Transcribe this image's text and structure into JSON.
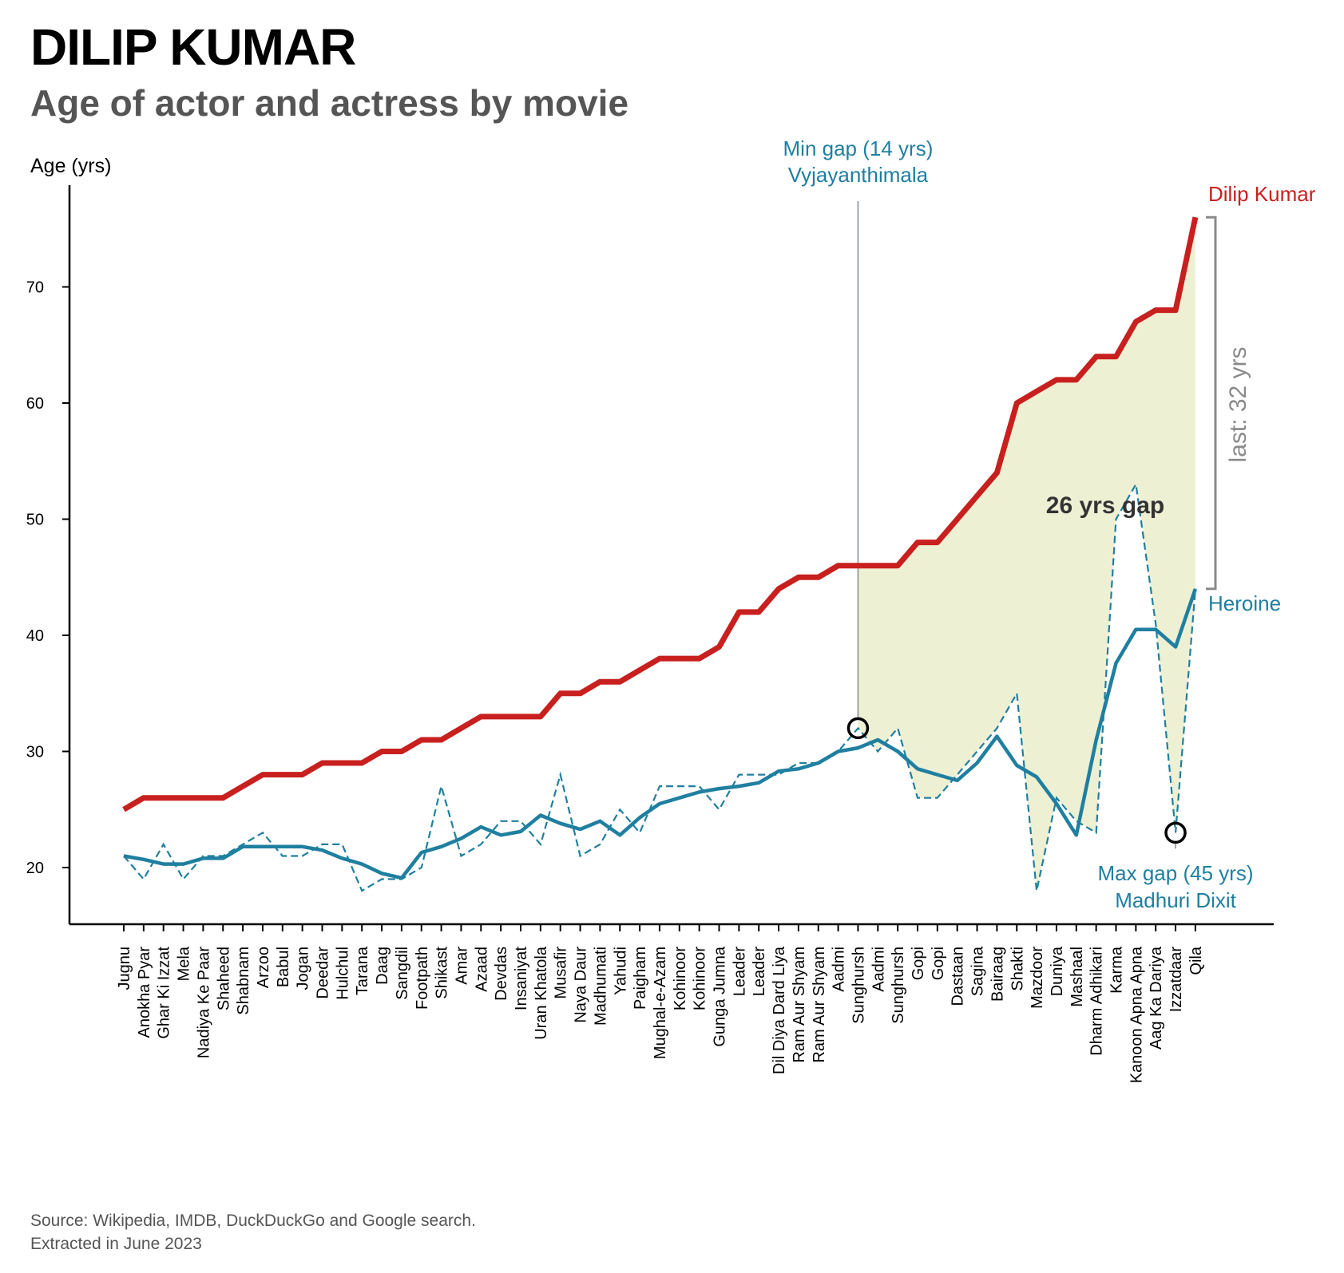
{
  "title": "DILIP KUMAR",
  "subtitle": "Age of actor and actress by movie",
  "footer": {
    "line1": "Source: Wikipedia, IMDB, DuckDuckGo and Google search.",
    "line2": "Extracted in June 2023"
  },
  "colors": {
    "actor": "#c8201e",
    "heroine": "#1f7fa0",
    "gap_fill": "#eef0d4",
    "annotation_gray": "#888888",
    "bracket_gray": "#8a8a8a"
  },
  "chart_data": {
    "type": "line",
    "ylabel": "Age (yrs)",
    "ylim": [
      15,
      79
    ],
    "yticks": [
      20,
      30,
      40,
      50,
      60,
      70
    ],
    "categories": [
      "Jugnu",
      "Anokha Pyar",
      "Ghar Ki Izzat",
      "Mela",
      "Nadiya Ke Paar",
      "Shaheed",
      "Shabnam",
      "Arzoo",
      "Babul",
      "Jogan",
      "Deedar",
      "Hulchul",
      "Tarana",
      "Daag",
      "Sangdil",
      "Footpath",
      "Shikast",
      "Amar",
      "Azaad",
      "Devdas",
      "Insaniyat",
      "Uran Khatola",
      "Musafir",
      "Naya Daur",
      "Madhumati",
      "Yahudi",
      "Paigham",
      "Mughal-e-Azam",
      "Kohinoor",
      "Kohinoor",
      "Gunga Jumna",
      "Leader",
      "Leader",
      "Dil Diya Dard Liya",
      "Ram Aur Shyam",
      "Ram Aur Shyam",
      "Aadmi",
      "Sunghursh",
      "Aadmi",
      "Sunghursh",
      "Gopi",
      "Gopi",
      "Dastaan",
      "Sagina",
      "Bairaag",
      "Shakti",
      "Mazdoor",
      "Duniya",
      "Mashaal",
      "Dharm Adhikari",
      "Karma",
      "Kanoon Apna Apna",
      "Aag Ka Dariya",
      "Izzatdaar",
      "Qila"
    ],
    "series": [
      {
        "name": "Dilip Kumar",
        "style": "solid-thick",
        "values": [
          25,
          26,
          26,
          26,
          26,
          26,
          27,
          28,
          28,
          28,
          29,
          29,
          29,
          30,
          30,
          31,
          31,
          32,
          33,
          33,
          33,
          33,
          35,
          35,
          36,
          36,
          37,
          38,
          38,
          38,
          39,
          42,
          42,
          44,
          45,
          45,
          46,
          46,
          46,
          46,
          48,
          48,
          50,
          52,
          54,
          60,
          61,
          62,
          62,
          64,
          64,
          67,
          68,
          68,
          76
        ]
      },
      {
        "name": "Heroine",
        "style": "dashed",
        "values": [
          21,
          19,
          22,
          19,
          21,
          21,
          22,
          23,
          21,
          21,
          22,
          22,
          18,
          19,
          19,
          20,
          27,
          21,
          22,
          24,
          24,
          22,
          28,
          21,
          22,
          25,
          23,
          27,
          27,
          27,
          25,
          28,
          28,
          28,
          29,
          29,
          30,
          32,
          30,
          32,
          26,
          26,
          28,
          30,
          32,
          35,
          18,
          26,
          24,
          23,
          50,
          53,
          41,
          23,
          44
        ]
      },
      {
        "name": "Heroine",
        "style": "solid-rolling-average",
        "values": [
          21,
          20.7,
          20.3,
          20.3,
          20.8,
          20.8,
          21.8,
          21.8,
          21.8,
          21.8,
          21.5,
          20.8,
          20.3,
          19.5,
          19.1,
          21.3,
          21.8,
          22.5,
          23.5,
          22.8,
          23.1,
          24.5,
          23.8,
          23.3,
          24,
          22.8,
          24.3,
          25.5,
          26,
          26.5,
          26.8,
          27,
          27.3,
          28.3,
          28.5,
          29,
          30,
          30.3,
          31,
          30,
          28.5,
          28,
          27.5,
          29,
          31.3,
          28.8,
          27.8,
          25.5,
          22.8,
          31,
          37.6,
          40.5,
          40.5,
          39,
          44
        ]
      }
    ],
    "gap_fill_from_index": 37,
    "annotations": {
      "min_gap_line1": "Min gap (14 yrs)",
      "min_gap_line2": "Vyjayanthimala",
      "min_gap_index": 37,
      "min_gap_value": 32,
      "max_gap_line1": "Max gap (45 yrs)",
      "max_gap_line2": "Madhuri Dixit",
      "max_gap_index": 53,
      "max_gap_value": 23,
      "gap_label": "26 yrs gap",
      "last_gap_label": "last: 32 yrs",
      "actor_label": "Dilip Kumar",
      "heroine_label": "Heroine"
    }
  }
}
